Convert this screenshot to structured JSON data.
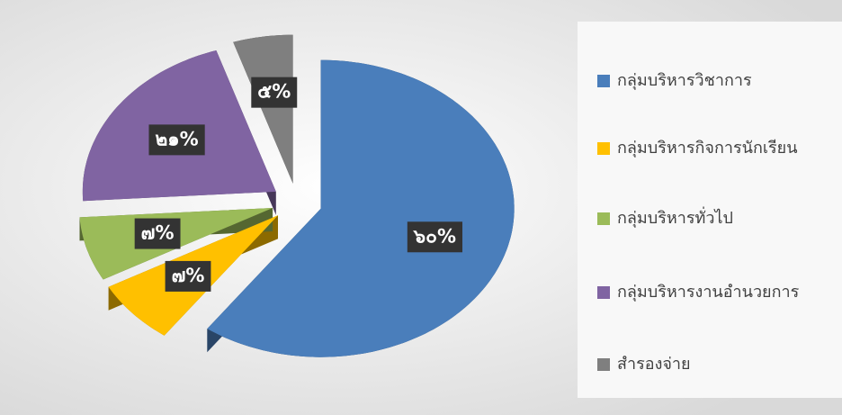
{
  "chart_data": {
    "type": "pie",
    "categories": [
      "กลุ่มบริหารวิชาการ",
      "กลุ่มบริหารกิจการนักเรียน",
      "กลุ่มบริหารทั่วไป",
      "กลุ่มบริหารงานอำนวยการ",
      "สำรองจ่าย"
    ],
    "values": [
      60,
      7,
      7,
      21,
      5
    ],
    "value_labels": [
      "๖๐%",
      "๗%",
      "๗%",
      "๒๑%",
      "๕%"
    ],
    "colors": [
      "#4a7ebb",
      "#ffc000",
      "#9bbb59",
      "#8064a2",
      "#7f7f7f"
    ],
    "legend": "right"
  }
}
